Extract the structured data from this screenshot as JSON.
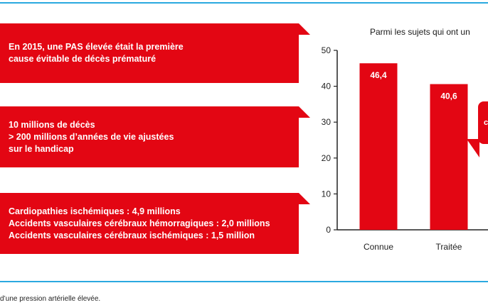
{
  "cards": [
    {
      "lines": [
        "En 2015, une PAS élevée était la première",
        "cause évitable de décès prématuré"
      ]
    },
    {
      "lines": [
        "10 millions de décès",
        "> 200 millions d’années de vie ajustées",
        "sur le handicap"
      ]
    },
    {
      "lines": [
        "Cardiopathies ischémiques : 4,9 millions",
        "Accidents vasculaires cérébraux hémorragiques : 2,0 millions",
        "Accidents vasculaires cérébraux ischémiques : 1,5 million"
      ]
    }
  ],
  "chart_data": {
    "type": "bar",
    "title": "Parmi les sujets qui ont un",
    "categories": [
      "Connue",
      "Traitée"
    ],
    "values": [
      46.4,
      40.6
    ],
    "value_labels": [
      "46,4",
      "40,6"
    ],
    "ylim": [
      0,
      50
    ],
    "yticks": [
      0,
      10,
      20,
      30,
      40,
      50
    ],
    "ytick_labels": [
      "0",
      "10",
      "20",
      "30",
      "40",
      "50"
    ],
    "bar_color": "#e30613",
    "value_label_color": "#ffffff",
    "grid": false,
    "callout_text": "c"
  },
  "footnote": "d’une pression artérielle élevée."
}
